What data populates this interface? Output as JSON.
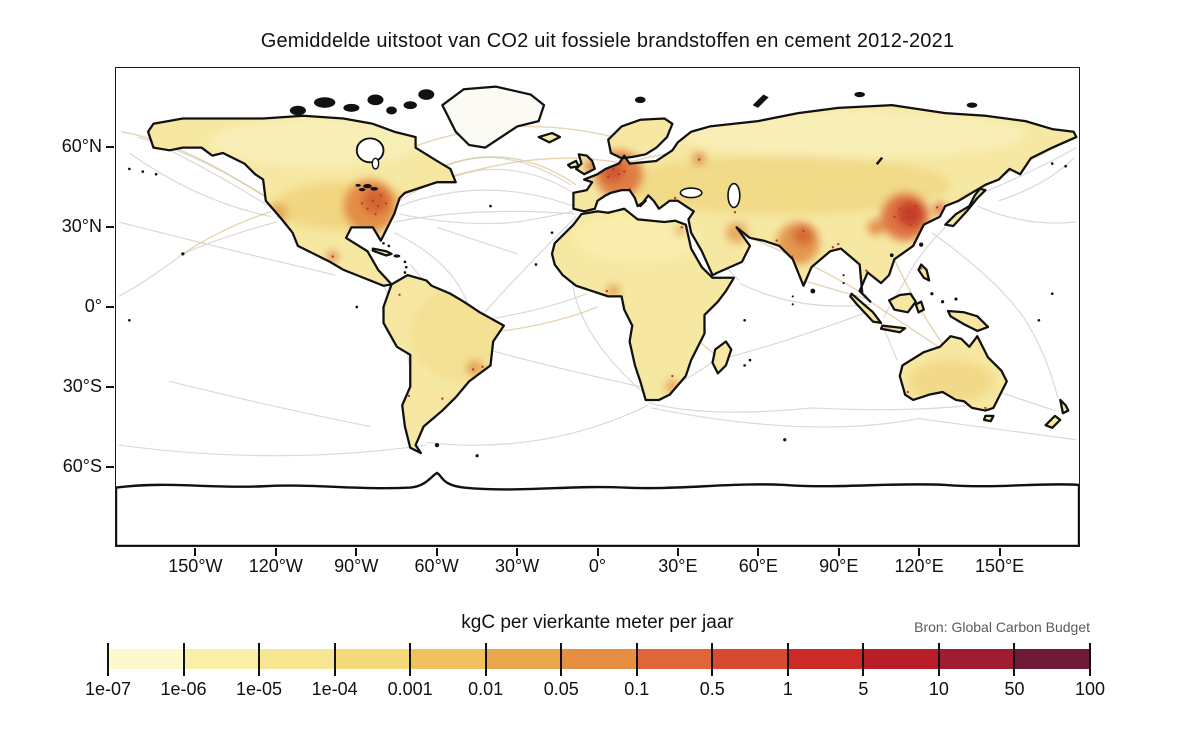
{
  "title": "Gemiddelde uitstoot van CO2 uit fossiele brandstoffen en cement 2012-2021",
  "map": {
    "lat_ticks": [
      {
        "label": "60°N",
        "value": 60
      },
      {
        "label": "30°N",
        "value": 30
      },
      {
        "label": "0°",
        "value": 0
      },
      {
        "label": "30°S",
        "value": -30
      },
      {
        "label": "60°S",
        "value": -60
      }
    ],
    "lon_ticks": [
      {
        "label": "150°W",
        "value": -150
      },
      {
        "label": "120°W",
        "value": -120
      },
      {
        "label": "90°W",
        "value": -90
      },
      {
        "label": "60°W",
        "value": -60
      },
      {
        "label": "30°W",
        "value": -30
      },
      {
        "label": "0°",
        "value": 0
      },
      {
        "label": "30°E",
        "value": 30
      },
      {
        "label": "60°E",
        "value": 60
      },
      {
        "label": "90°E",
        "value": 90
      },
      {
        "label": "120°E",
        "value": 120
      },
      {
        "label": "150°E",
        "value": 150
      }
    ]
  },
  "colorbar": {
    "unit_label": "kgC per vierkante meter per jaar",
    "source": "Bron: Global Carbon Budget",
    "tick_labels": [
      "1e-07",
      "1e-06",
      "1e-05",
      "1e-04",
      "0.001",
      "0.01",
      "0.05",
      "0.1",
      "0.5",
      "1",
      "5",
      "10",
      "50",
      "100"
    ],
    "segment_colors": [
      "#fdf8cd",
      "#faefa7",
      "#f7e691",
      "#f4da7b",
      "#efc25e",
      "#e9a74d",
      "#e68e41",
      "#e0663a",
      "#d74a2f",
      "#cb2a27",
      "#b81d28",
      "#a01c30",
      "#6f1a34"
    ]
  },
  "chart_data": {
    "type": "heatmap",
    "subtype": "geographic-emissions-map",
    "projection": "equirectangular world map, 180W-180E / 90S-90N",
    "title": "Gemiddelde uitstoot van CO2 uit fossiele brandstoffen en cement 2012-2021",
    "unit_label": "kgC per vierkante meter per jaar",
    "source": "Bron: Global Carbon Budget",
    "scale": "logarithmic, discrete segments",
    "colorbar_ticks": [
      "1e-07",
      "1e-06",
      "1e-05",
      "1e-04",
      "0.001",
      "0.01",
      "0.05",
      "0.1",
      "0.5",
      "1",
      "5",
      "10",
      "50",
      "100"
    ],
    "colorbar_colors": [
      "#fdf8cd",
      "#faefa7",
      "#f7e691",
      "#f4da7b",
      "#efc25e",
      "#e9a74d",
      "#e68e41",
      "#e0663a",
      "#d74a2f",
      "#cb2a27",
      "#b81d28",
      "#a01c30",
      "#6f1a34"
    ],
    "x_tick_labels": [
      "150°W",
      "120°W",
      "90°W",
      "60°W",
      "30°W",
      "0°",
      "30°E",
      "60°E",
      "90°E",
      "120°E",
      "150°E"
    ],
    "y_tick_labels": [
      "60°N",
      "30°N",
      "0°",
      "30°S",
      "60°S"
    ],
    "high_emission_regions": [
      "Eastern United States",
      "Western and Central Europe",
      "Northern India",
      "Eastern China",
      "Korea and Japan",
      "Persian Gulf",
      "Java",
      "Nigeria coast",
      "South Africa (Johannesburg)",
      "São Paulo / Rio region"
    ],
    "moderate_emission_regions": [
      "Continental USA",
      "Europe",
      "Russia mid-latitudes",
      "India",
      "China",
      "Southeast Asia",
      "Mexico",
      "Brazil coast",
      "Australia coasts"
    ],
    "low_or_no_data_regions": [
      "Greenland interior",
      "Antarctica interior",
      "Sahara",
      "Amazon",
      "Siberian Arctic",
      "Open oceans away from lanes"
    ],
    "ocean_features": "dense light-gray shipping-lane great-circle arcs and tan aircraft-route arcs across Atlantic, Pacific and Indian oceans"
  }
}
